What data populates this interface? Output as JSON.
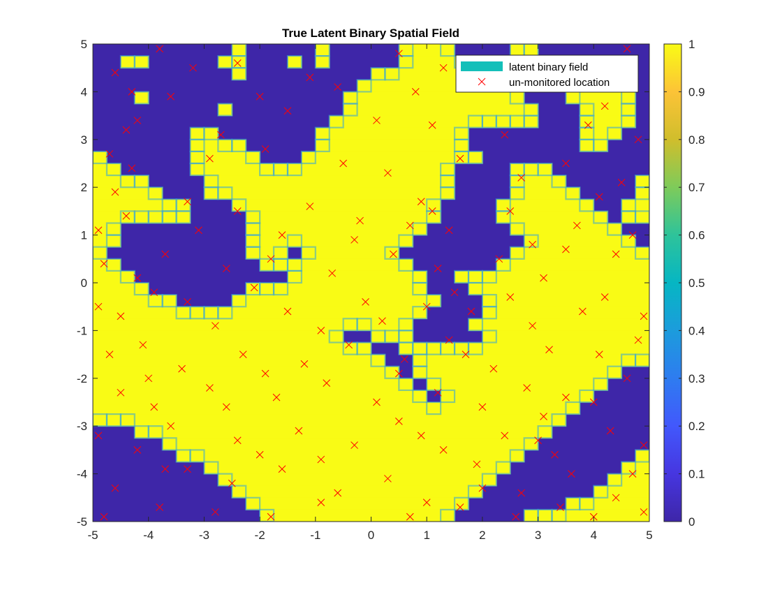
{
  "chart_data": {
    "type": "heatmap",
    "title": "True Latent Binary Spatial Field",
    "xlabel": "",
    "ylabel": "",
    "xlim": [
      -5,
      5
    ],
    "ylim": [
      -5,
      5
    ],
    "xticks": [
      -5,
      -4,
      -3,
      -2,
      -1,
      0,
      1,
      2,
      3,
      4,
      5
    ],
    "yticks": [
      -5,
      -4,
      -3,
      -2,
      -1,
      0,
      1,
      2,
      3,
      4,
      5
    ],
    "grid": false,
    "colormap": "parula",
    "colorbar": {
      "range": [
        0,
        1
      ],
      "ticks": [
        0,
        0.1,
        0.2,
        0.3,
        0.4,
        0.5,
        0.6,
        0.7,
        0.8,
        0.9,
        1
      ],
      "tick_labels": [
        "0",
        "0.1",
        "0.2",
        "0.3",
        "0.4",
        "0.5",
        "0.6",
        "0.7",
        "0.8",
        "0.9",
        "1"
      ]
    },
    "legend": {
      "placement": "top-right",
      "entries": [
        {
          "label": "latent binary field",
          "swatch_color": "#14bfb9"
        },
        {
          "label": "un-monitored location",
          "marker": "x",
          "color": "#ff0000"
        }
      ]
    },
    "field_grid": {
      "x_range": [
        -5,
        5
      ],
      "y_range": [
        5,
        -5
      ],
      "rows": [
        "0000000000100000100000111100001100000000",
        "0011000001100010100000111111100000000000",
        "0000000000100000000011111111110000011000",
        "0000000000000000000111111111110001111110",
        "0001000000000000001111111111111000111110",
        "0000000001000000001111111111111100011110",
        "0000000000000000011111111111111100011110",
        "0000000110000000111111111110000000011100",
        "0000000111100000111111111110000000011000",
        "1000000111110001111111111111000000000000",
        "1100000111111111111111111100001110000000",
        "1111000011111111111111111100001111000001",
        "1111100011111111111111111100001111100001",
        "1111111000111111111111111000011111110011",
        "1111111000011111111111111000011111111011",
        "1100000000011111111111110000001111111100",
        "1100000000011111111111100000000111111110",
        "1000000000011101111111000000001111111111",
        "1100000000001111111111100000011111111111",
        "1110000000000011111111110011111111111111",
        "1111000000011111111111110001111111111111",
        "1111110000111111111111111000111111111111",
        "1111111111111111111111110000111111111111",
        "1111111111111111111111100001111111111111",
        "1111111111111111110011100000111111111111",
        "1111111111111111111100111111111111111111",
        "1111111111111111111110011111111111111111",
        "1111111111111111111111011111111111111100",
        "1111111111111111111111101111111111111000",
        "1111111111111111111111110111111111110000",
        "1111111111111111111111111111111111100000",
        "1111111111111111111111111111111111000000",
        "0001111111111111111111111111111110000000",
        "0000011111111111111111111111111100000000",
        "0000001111111111111111111111111000000001",
        "0000000011111111111111111111110000000011",
        "0000000001111111111111111111100000000111",
        "0000000000111111111111111111000000001111",
        "0000000000011111111111111110000000111111",
        "0000000000001111111111111100000111111111"
      ]
    },
    "unmonitored_locations": [
      [
        -4.6,
        4.4
      ],
      [
        -3.8,
        4.9
      ],
      [
        -2.4,
        4.6
      ],
      [
        -1.1,
        4.3
      ],
      [
        0.5,
        4.8
      ],
      [
        1.3,
        4.5
      ],
      [
        2.2,
        4.6
      ],
      [
        3.3,
        4.1
      ],
      [
        4.6,
        4.9
      ],
      [
        -4.4,
        3.2
      ],
      [
        -4.2,
        3.4
      ],
      [
        -3.6,
        3.9
      ],
      [
        -2.7,
        3.1
      ],
      [
        -1.5,
        3.6
      ],
      [
        0.1,
        3.4
      ],
      [
        1.1,
        3.3
      ],
      [
        2.4,
        3.1
      ],
      [
        3.9,
        3.3
      ],
      [
        4.8,
        3.0
      ],
      [
        -4.7,
        2.7
      ],
      [
        -4.3,
        2.4
      ],
      [
        -2.9,
        2.6
      ],
      [
        -1.9,
        2.8
      ],
      [
        -0.5,
        2.5
      ],
      [
        0.3,
        2.3
      ],
      [
        1.6,
        2.6
      ],
      [
        2.7,
        2.2
      ],
      [
        3.5,
        2.5
      ],
      [
        4.5,
        2.1
      ],
      [
        -4.9,
        1.1
      ],
      [
        -4.4,
        1.4
      ],
      [
        -3.3,
        1.7
      ],
      [
        -2.4,
        1.5
      ],
      [
        -1.1,
        1.6
      ],
      [
        -0.2,
        1.3
      ],
      [
        0.9,
        1.7
      ],
      [
        1.4,
        1.1
      ],
      [
        2.5,
        1.5
      ],
      [
        3.7,
        1.2
      ],
      [
        4.7,
        1.0
      ],
      [
        -4.8,
        0.4
      ],
      [
        -4.2,
        0.1
      ],
      [
        -3.7,
        0.6
      ],
      [
        -2.6,
        0.3
      ],
      [
        -1.8,
        0.5
      ],
      [
        -0.7,
        0.2
      ],
      [
        0.4,
        0.6
      ],
      [
        1.2,
        0.3
      ],
      [
        2.3,
        0.5
      ],
      [
        3.1,
        0.1
      ],
      [
        4.4,
        0.6
      ],
      [
        -4.9,
        -0.5
      ],
      [
        -4.5,
        -0.7
      ],
      [
        -3.3,
        -0.4
      ],
      [
        -2.8,
        -0.9
      ],
      [
        -1.5,
        -0.6
      ],
      [
        -0.9,
        -1.0
      ],
      [
        0.2,
        -0.8
      ],
      [
        1.0,
        -0.5
      ],
      [
        1.8,
        -0.6
      ],
      [
        2.9,
        -0.9
      ],
      [
        3.8,
        -0.6
      ],
      [
        4.9,
        -0.7
      ],
      [
        -4.7,
        -1.5
      ],
      [
        -4.1,
        -1.3
      ],
      [
        -3.4,
        -1.8
      ],
      [
        -2.3,
        -1.5
      ],
      [
        -1.2,
        -1.7
      ],
      [
        -0.4,
        -1.3
      ],
      [
        0.6,
        -1.6
      ],
      [
        1.4,
        -1.2
      ],
      [
        2.2,
        -1.8
      ],
      [
        3.2,
        -1.4
      ],
      [
        4.1,
        -1.5
      ],
      [
        4.8,
        -1.2
      ],
      [
        -4.5,
        -2.3
      ],
      [
        -3.9,
        -2.6
      ],
      [
        -2.9,
        -2.2
      ],
      [
        -1.7,
        -2.4
      ],
      [
        -0.8,
        -2.1
      ],
      [
        0.1,
        -2.5
      ],
      [
        1.2,
        -2.3
      ],
      [
        2.0,
        -2.6
      ],
      [
        2.8,
        -2.2
      ],
      [
        3.5,
        -2.4
      ],
      [
        4.6,
        -2.0
      ],
      [
        -4.9,
        -3.2
      ],
      [
        -4.2,
        -3.5
      ],
      [
        -3.6,
        -3.0
      ],
      [
        -2.4,
        -3.3
      ],
      [
        -1.3,
        -3.1
      ],
      [
        -0.3,
        -3.4
      ],
      [
        0.5,
        -2.9
      ],
      [
        1.3,
        -3.5
      ],
      [
        2.4,
        -3.2
      ],
      [
        3.3,
        -3.6
      ],
      [
        4.3,
        -3.1
      ],
      [
        4.9,
        -3.4
      ],
      [
        -4.6,
        -4.3
      ],
      [
        -3.7,
        -3.9
      ],
      [
        -2.5,
        -4.2
      ],
      [
        -1.6,
        -3.9
      ],
      [
        -0.6,
        -4.4
      ],
      [
        0.3,
        -4.1
      ],
      [
        1.0,
        -4.6
      ],
      [
        1.9,
        -3.8
      ],
      [
        2.7,
        -4.4
      ],
      [
        3.6,
        -4.0
      ],
      [
        4.4,
        -4.5
      ],
      [
        -4.8,
        -4.9
      ],
      [
        -3.8,
        -4.7
      ],
      [
        -2.8,
        -4.8
      ],
      [
        -1.8,
        -4.9
      ],
      [
        -0.9,
        -4.6
      ],
      [
        0.7,
        -4.9
      ],
      [
        1.6,
        -4.7
      ],
      [
        2.6,
        -4.9
      ],
      [
        3.4,
        -4.7
      ],
      [
        4.0,
        -4.9
      ],
      [
        4.9,
        -4.8
      ],
      [
        -4.3,
        4.0
      ],
      [
        -3.2,
        4.5
      ],
      [
        -2.0,
        3.9
      ],
      [
        -0.6,
        4.1
      ],
      [
        0.8,
        4.0
      ],
      [
        1.9,
        4.2
      ],
      [
        3.6,
        4.6
      ],
      [
        4.2,
        3.7
      ],
      [
        -4.6,
        1.9
      ],
      [
        -3.1,
        1.1
      ],
      [
        -1.6,
        1.0
      ],
      [
        -0.3,
        0.9
      ],
      [
        0.7,
        1.2
      ],
      [
        1.1,
        1.5
      ],
      [
        2.9,
        0.8
      ],
      [
        4.1,
        1.8
      ],
      [
        -3.9,
        -0.2
      ],
      [
        -2.1,
        -0.1
      ],
      [
        -0.1,
        -0.4
      ],
      [
        1.5,
        -0.2
      ],
      [
        2.5,
        -0.3
      ],
      [
        3.5,
        0.7
      ],
      [
        4.2,
        -0.3
      ],
      [
        -4.0,
        -2.0
      ],
      [
        -2.6,
        -2.6
      ],
      [
        -1.9,
        -1.9
      ],
      [
        0.5,
        -1.9
      ],
      [
        1.7,
        -1.5
      ],
      [
        3.1,
        -2.8
      ],
      [
        4.0,
        -2.5
      ],
      [
        -3.3,
        -3.9
      ],
      [
        -2.0,
        -3.6
      ],
      [
        -0.9,
        -3.7
      ],
      [
        0.9,
        -3.2
      ],
      [
        2.0,
        -4.3
      ],
      [
        3.0,
        -3.3
      ],
      [
        4.7,
        -4.0
      ]
    ]
  }
}
